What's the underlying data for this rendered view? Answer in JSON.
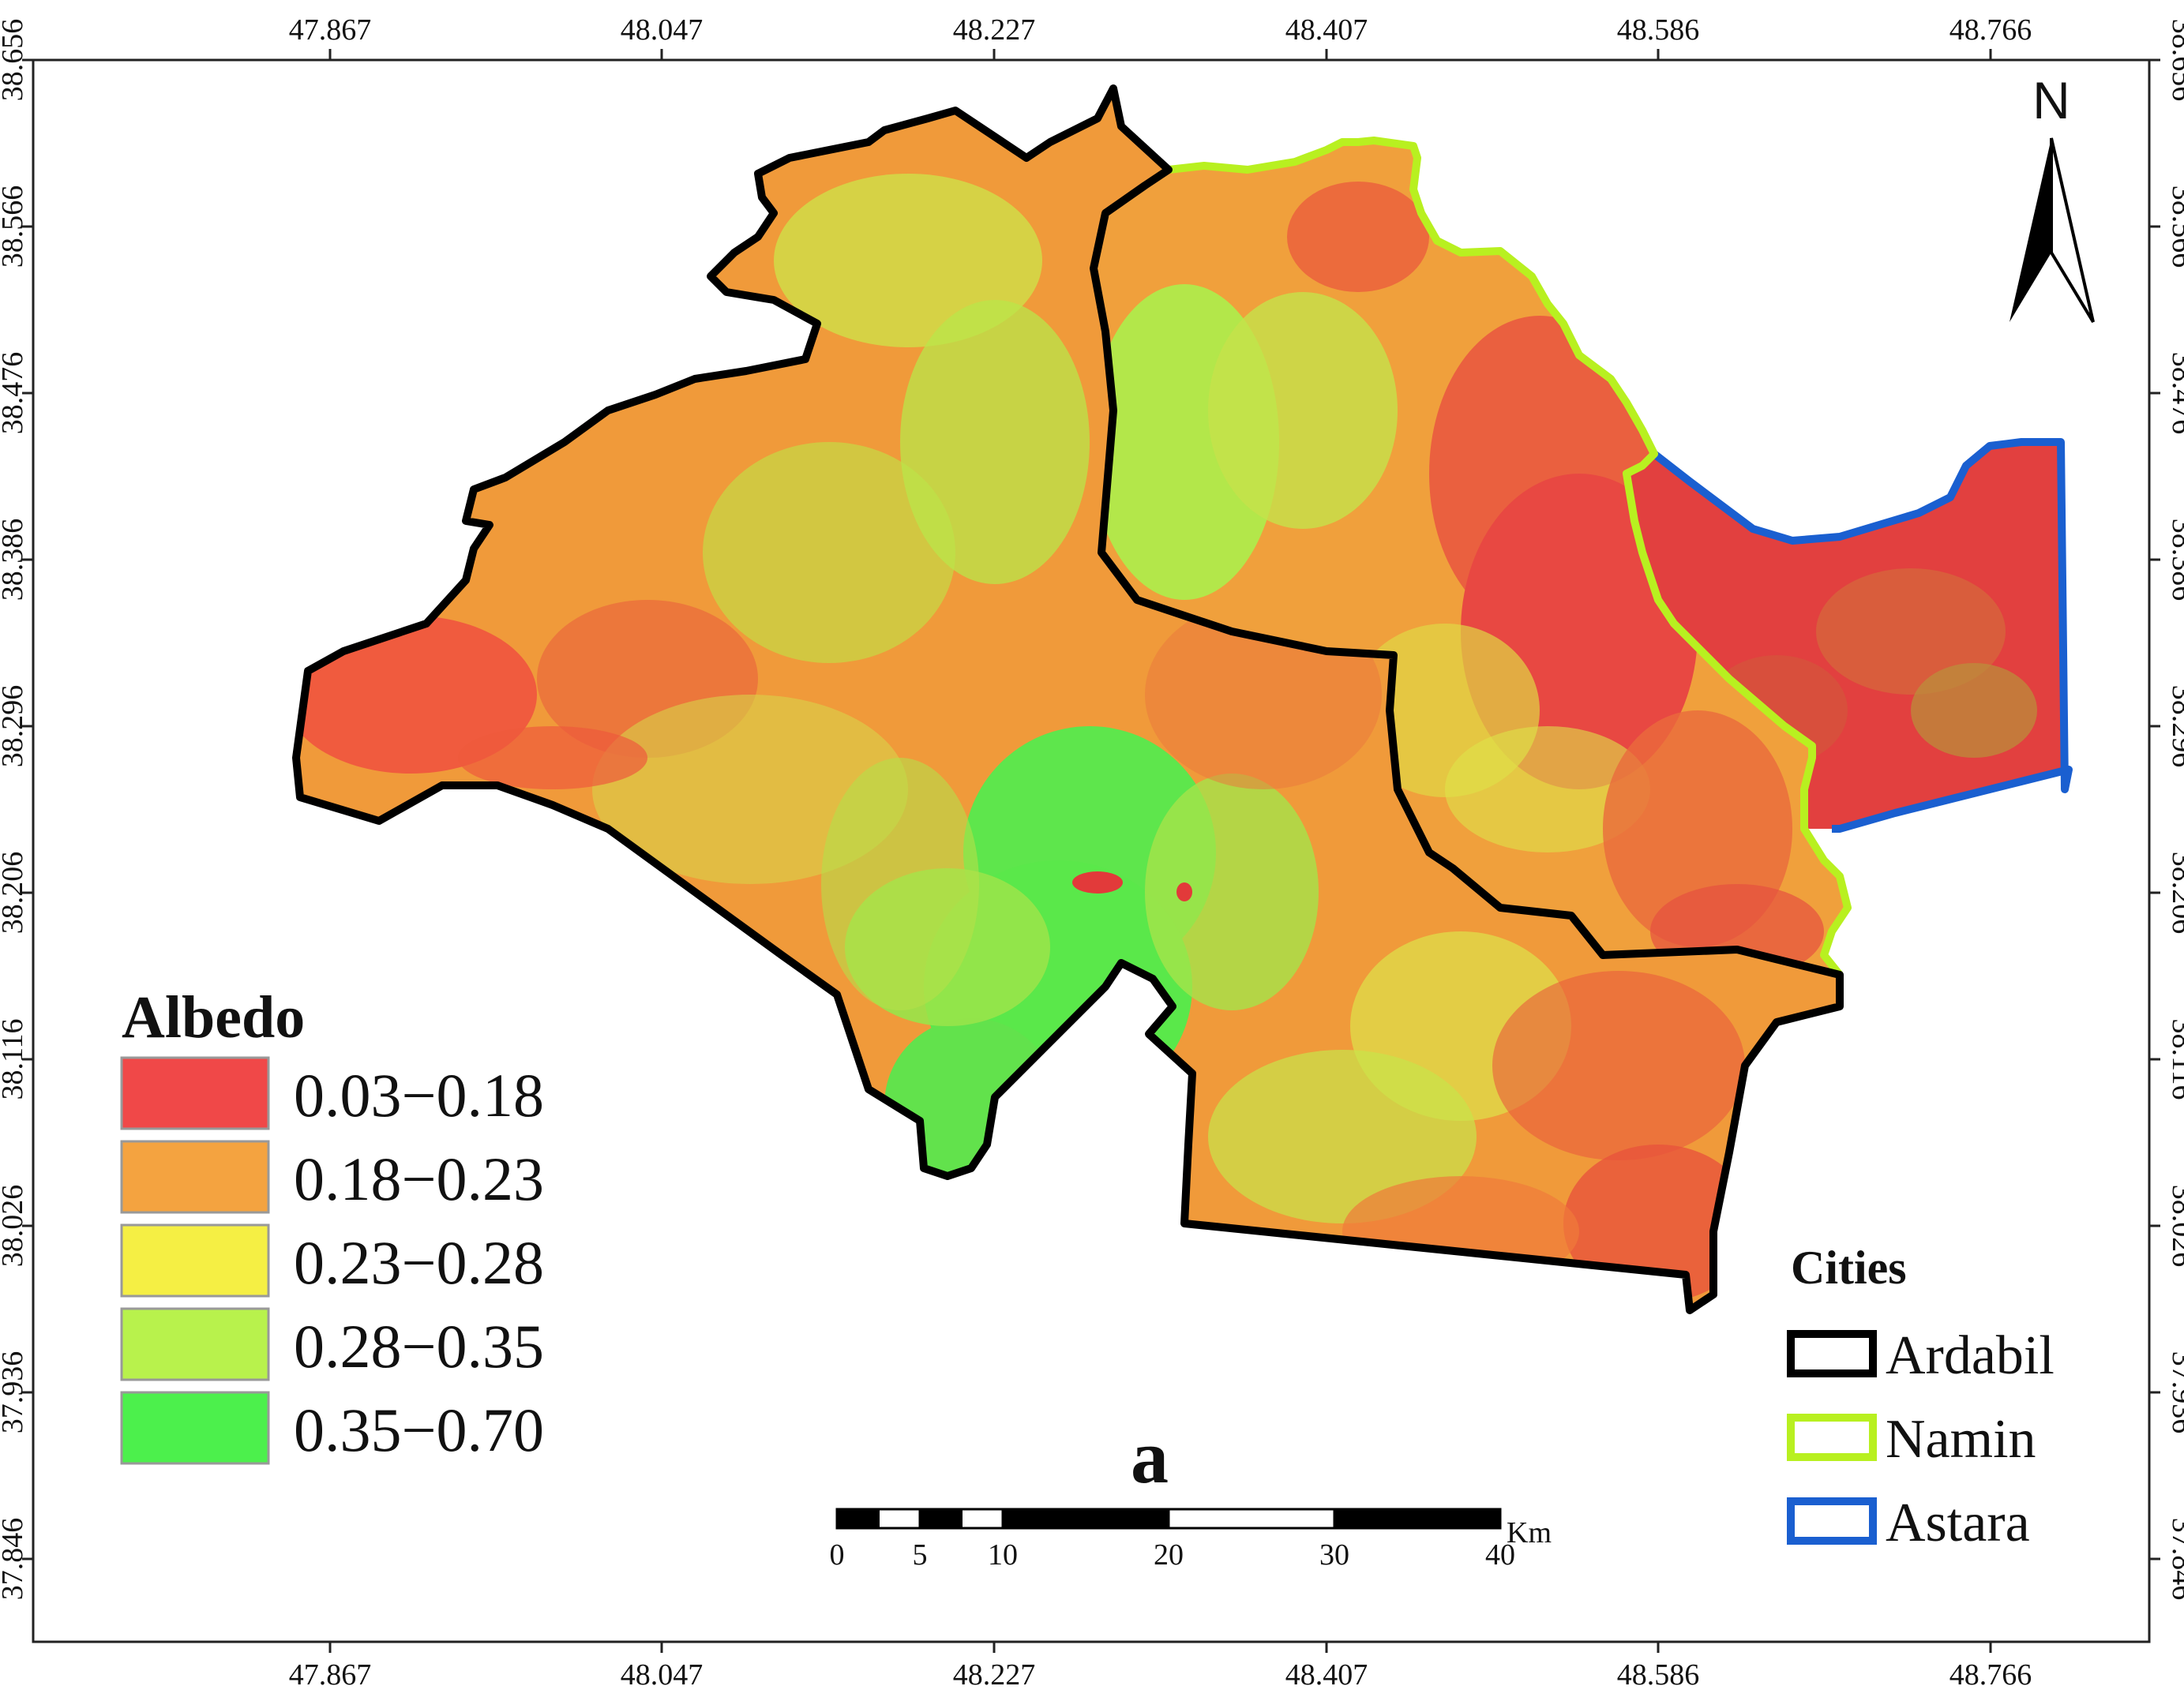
{
  "map": {
    "panel_label": "a",
    "north_label": "N",
    "x_ticks": [
      "47.867",
      "48.047",
      "48.227",
      "48.407",
      "48.586",
      "48.766"
    ],
    "y_ticks": [
      "38.656",
      "38.566",
      "38.476",
      "38.386",
      "38.296",
      "38.206",
      "38.116",
      "38.026",
      "37.936",
      "37.846"
    ]
  },
  "legend": {
    "title": "Albedo",
    "classes": [
      {
        "label": "0.03−0.18",
        "color": "#f04848"
      },
      {
        "label": "0.18−0.23",
        "color": "#f4a340"
      },
      {
        "label": "0.23−0.28",
        "color": "#f5ef44"
      },
      {
        "label": "0.28−0.35",
        "color": "#b8f24c"
      },
      {
        "label": "0.35−0.70",
        "color": "#4cf04c"
      }
    ]
  },
  "cities": {
    "title": "Cities",
    "items": [
      {
        "label": "Ardabil",
        "color": "#000000"
      },
      {
        "label": "Namin",
        "color": "#b8f020"
      },
      {
        "label": "Astara",
        "color": "#1a5fd0"
      }
    ]
  },
  "scale_bar": {
    "unit": "Km",
    "ticks": [
      "0",
      "5",
      "10",
      "20",
      "30",
      "40"
    ]
  }
}
